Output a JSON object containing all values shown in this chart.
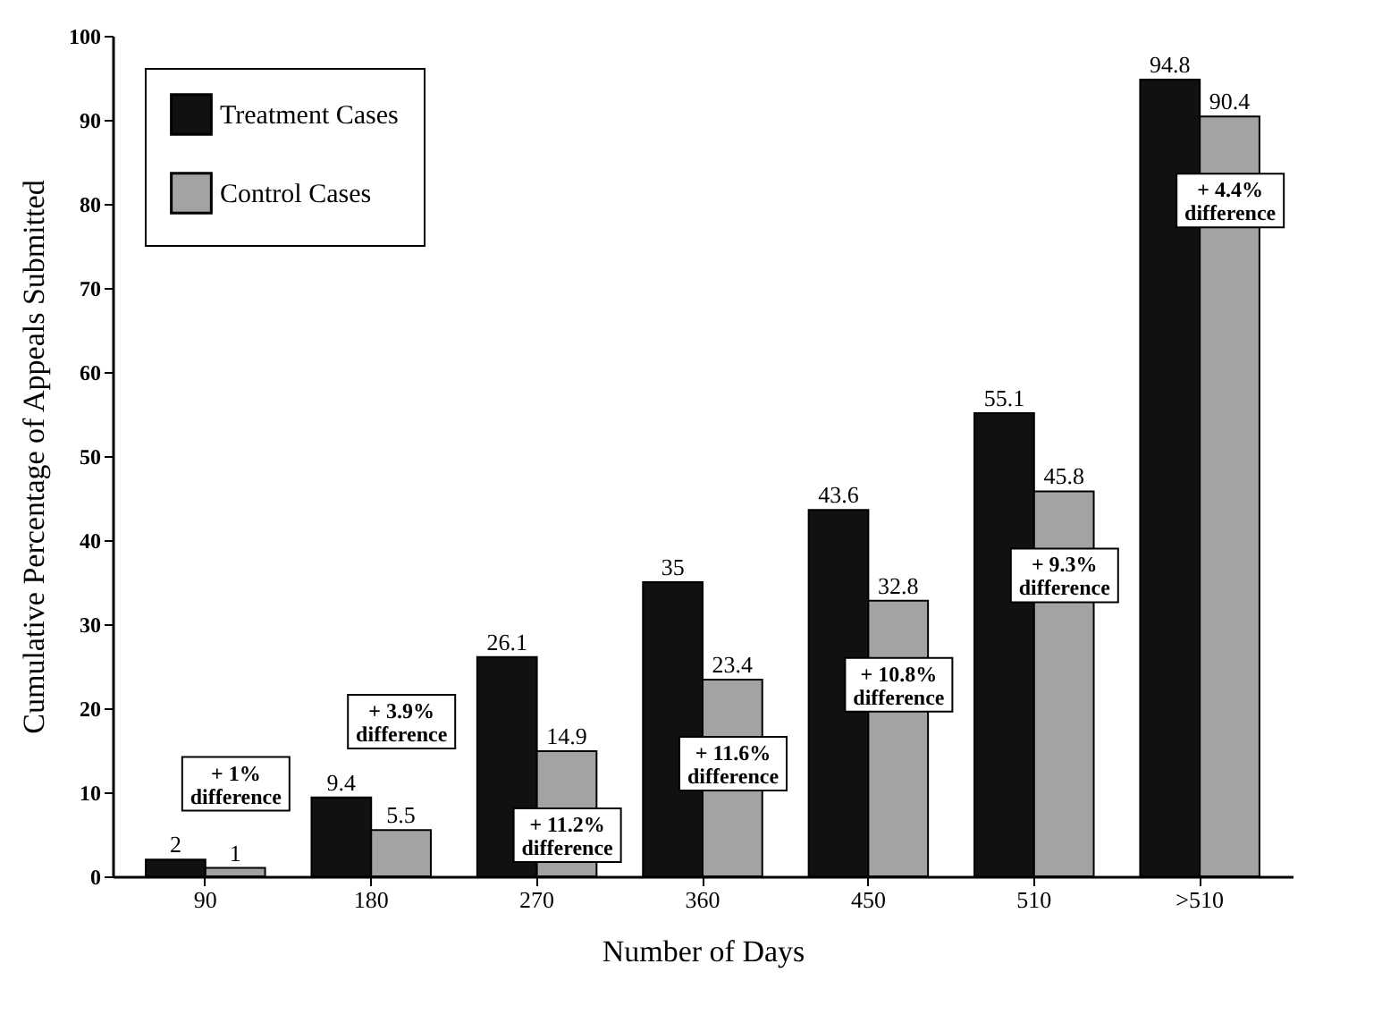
{
  "chart_data": {
    "type": "bar",
    "xlabel": "Number of Days",
    "ylabel": "Cumulative Percentage of Appeals Submitted",
    "categories": [
      "90",
      "180",
      "270",
      "360",
      "450",
      "510",
      ">510"
    ],
    "series": [
      {
        "name": "Treatment Cases",
        "color": "#111111",
        "values": [
          2,
          9.4,
          26.1,
          35,
          43.6,
          55.1,
          94.8
        ]
      },
      {
        "name": "Control Cases",
        "color": "#a3a3a3",
        "values": [
          1,
          5.5,
          14.9,
          23.4,
          32.8,
          45.8,
          90.4
        ]
      }
    ],
    "ylim": [
      0,
      100
    ],
    "yticks": [
      0,
      10,
      20,
      30,
      40,
      50,
      60,
      70,
      80,
      90,
      100
    ],
    "grid": false,
    "legend": "top left",
    "data_labels": true,
    "annotations": [
      "+ 1% difference",
      "+ 3.9% difference",
      "+ 11.2% difference",
      "+ 11.6% difference",
      "+ 10.8% difference",
      "+ 9.3% difference",
      "+ 4.4% difference"
    ]
  }
}
